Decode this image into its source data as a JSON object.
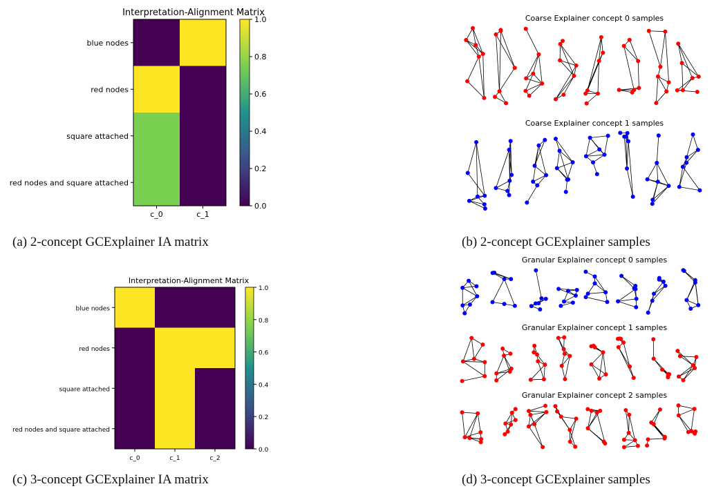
{
  "figure": {
    "captions": {
      "a": "(a) 2-concept GCExplainer IA matrix",
      "b": "(b) 2-concept GCExplainer samples",
      "c": "(c) 3-concept GCExplainer IA matrix",
      "d": "(d) 3-concept GCExplainer samples"
    }
  },
  "colors": {
    "zero": "#440154",
    "mid": "#7ad151",
    "one": "#fde725",
    "red_node": "#ff0000",
    "blue_node": "#0000ff"
  },
  "chart_data": [
    {
      "type": "heatmap",
      "title": "Interpretation-Alignment Matrix",
      "rows": [
        "blue nodes",
        "red nodes",
        "square attached",
        "red nodes and square attached"
      ],
      "cols": [
        "c_0",
        "c_1"
      ],
      "values": [
        [
          0.0,
          1.0
        ],
        [
          1.0,
          0.0
        ],
        [
          0.75,
          0.0
        ],
        [
          0.75,
          0.0
        ]
      ],
      "colorbar": {
        "ticks": [
          "0.0",
          "0.2",
          "0.4",
          "0.6",
          "0.8",
          "1.0"
        ],
        "range": [
          0,
          1
        ]
      }
    },
    {
      "type": "heatmap",
      "title": "Interpretation-Alignment Matrix",
      "rows": [
        "blue nodes",
        "red nodes",
        "square attached",
        "red nodes and square attached"
      ],
      "cols": [
        "c_0",
        "c_1",
        "c_2"
      ],
      "values": [
        [
          1.0,
          0.0,
          0.0
        ],
        [
          0.0,
          1.0,
          1.0
        ],
        [
          0.0,
          1.0,
          0.0
        ],
        [
          0.0,
          1.0,
          0.0
        ]
      ],
      "colorbar": {
        "ticks": [
          "0.0",
          "0.2",
          "0.4",
          "0.6",
          "0.8",
          "1.0"
        ],
        "range": [
          0,
          1
        ]
      }
    }
  ],
  "samples": {
    "b": [
      {
        "title": "Coarse Explainer concept 0 samples",
        "node_color": "red",
        "count": 8
      },
      {
        "title": "Coarse Explainer concept 1 samples",
        "node_color": "blue",
        "count": 8
      }
    ],
    "d": [
      {
        "title": "Granular Explainer concept 0 samples",
        "node_color": "blue",
        "count": 8
      },
      {
        "title": "Granular Explainer concept 1 samples",
        "node_color": "red",
        "count": 8
      },
      {
        "title": "Granular Explainer concept 2 samples",
        "node_color": "red",
        "count": 8
      }
    ]
  }
}
